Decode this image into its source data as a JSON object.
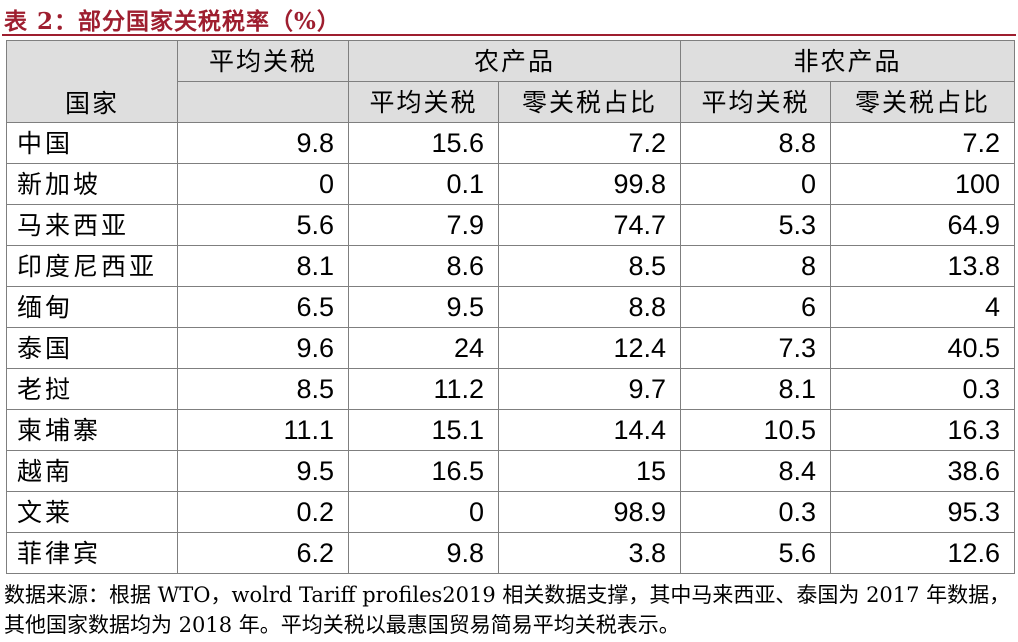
{
  "title": "表 2：部分国家关税税率（%）",
  "header": {
    "country": "国家",
    "avg_tariff": "平均关税",
    "agri": "农产品",
    "non_agri": "非农产品",
    "sub_avg": "平均关税",
    "sub_zero": "零关税占比"
  },
  "rows": [
    {
      "country": "中国",
      "avg": "9.8",
      "agri_avg": "15.6",
      "agri_zero": "7.2",
      "non_avg": "8.8",
      "non_zero": "7.2"
    },
    {
      "country": "新加坡",
      "avg": "0",
      "agri_avg": "0.1",
      "agri_zero": "99.8",
      "non_avg": "0",
      "non_zero": "100"
    },
    {
      "country": "马来西亚",
      "avg": "5.6",
      "agri_avg": "7.9",
      "agri_zero": "74.7",
      "non_avg": "5.3",
      "non_zero": "64.9"
    },
    {
      "country": "印度尼西亚",
      "avg": "8.1",
      "agri_avg": "8.6",
      "agri_zero": "8.5",
      "non_avg": "8",
      "non_zero": "13.8"
    },
    {
      "country": "缅甸",
      "avg": "6.5",
      "agri_avg": "9.5",
      "agri_zero": "8.8",
      "non_avg": "6",
      "non_zero": "4"
    },
    {
      "country": "泰国",
      "avg": "9.6",
      "agri_avg": "24",
      "agri_zero": "12.4",
      "non_avg": "7.3",
      "non_zero": "40.5"
    },
    {
      "country": "老挝",
      "avg": "8.5",
      "agri_avg": "11.2",
      "agri_zero": "9.7",
      "non_avg": "8.1",
      "non_zero": "0.3"
    },
    {
      "country": "柬埔寨",
      "avg": "11.1",
      "agri_avg": "15.1",
      "agri_zero": "14.4",
      "non_avg": "10.5",
      "non_zero": "16.3"
    },
    {
      "country": "越南",
      "avg": "9.5",
      "agri_avg": "16.5",
      "agri_zero": "15",
      "non_avg": "8.4",
      "non_zero": "38.6"
    },
    {
      "country": "文莱",
      "avg": "0.2",
      "agri_avg": "0",
      "agri_zero": "98.9",
      "non_avg": "0.3",
      "non_zero": "95.3"
    },
    {
      "country": "菲律宾",
      "avg": "6.2",
      "agri_avg": "9.8",
      "agri_zero": "3.8",
      "non_avg": "5.6",
      "non_zero": "12.6"
    }
  ],
  "note": "数据来源：根据 WTO，wolrd Tariff profiles2019 相关数据支撑，其中马来西亚、泰国为 2017 年数据，其他国家数据均为 2018 年。平均关税以最惠国贸易简易平均关税表示。",
  "colors": {
    "accent": "#9e1e2f",
    "header_bg": "#dedede",
    "border": "#7f7f7f"
  }
}
